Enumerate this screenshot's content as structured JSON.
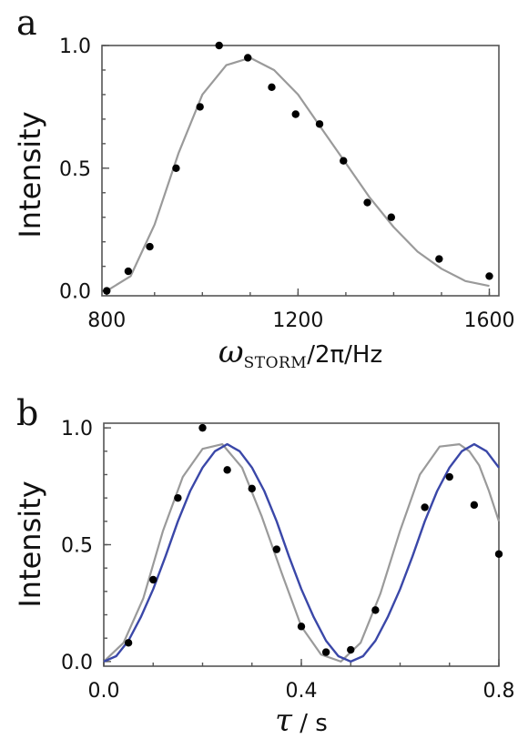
{
  "panels": [
    {
      "letter": "a",
      "ylabel": "Intensity",
      "xlabel": {
        "symbol": "ω",
        "subscript": "STORM",
        "tail": "/2π/Hz"
      },
      "xticks": [
        800,
        1200,
        1600
      ],
      "xtick_labels": [
        "800",
        "1200",
        "1600"
      ],
      "yticks": [
        0.0,
        0.5,
        1.0
      ],
      "ytick_labels": [
        "0.0",
        "0.5",
        "1.0"
      ],
      "xlim": [
        790,
        1620
      ],
      "ylim": [
        -0.02,
        1.0
      ],
      "minor_x_step": 100,
      "minor_y_step": 0.1
    },
    {
      "letter": "b",
      "ylabel": "Intensity",
      "xlabel": {
        "symbol": "τ",
        "subscript": "",
        "tail": " / s"
      },
      "xticks": [
        0.0,
        0.4,
        0.8
      ],
      "xtick_labels": [
        "0.0",
        "0.4",
        "0.8"
      ],
      "yticks": [
        0.0,
        0.5,
        1.0
      ],
      "ytick_labels": [
        "0.0",
        "0.5",
        "1.0"
      ],
      "xlim": [
        0.0,
        0.8
      ],
      "ylim": [
        -0.02,
        1.02
      ],
      "minor_x_step": 0.1,
      "minor_y_step": 0.1
    }
  ],
  "colors": {
    "points": "#000000",
    "gray_curve": "#9a9a9a",
    "blue_curve": "#3a47a8"
  },
  "chart_data": [
    {
      "type": "scatter",
      "title": "",
      "xlabel": "ωSTORM/2π/Hz",
      "ylabel": "Intensity",
      "xlim": [
        790,
        1620
      ],
      "ylim": [
        -0.02,
        1.0
      ],
      "grid": false,
      "series": [
        {
          "kind": "points",
          "x": [
            800,
            845,
            890,
            945,
            995,
            1035,
            1095,
            1145,
            1195,
            1245,
            1295,
            1345,
            1395,
            1495,
            1600
          ],
          "y": [
            0.0,
            0.08,
            0.18,
            0.5,
            0.75,
            1.0,
            0.95,
            0.83,
            0.72,
            0.68,
            0.53,
            0.36,
            0.3,
            0.13,
            0.06
          ]
        },
        {
          "kind": "gray-curve",
          "x": [
            800,
            850,
            900,
            950,
            1000,
            1050,
            1100,
            1150,
            1200,
            1250,
            1300,
            1350,
            1400,
            1450,
            1500,
            1550,
            1600
          ],
          "y": [
            0.0,
            0.06,
            0.27,
            0.56,
            0.8,
            0.92,
            0.95,
            0.9,
            0.8,
            0.66,
            0.52,
            0.38,
            0.26,
            0.16,
            0.09,
            0.04,
            0.02
          ]
        }
      ]
    },
    {
      "type": "scatter",
      "title": "",
      "xlabel": "τ / s",
      "ylabel": "Intensity",
      "xlim": [
        0.0,
        0.8
      ],
      "ylim": [
        -0.02,
        1.02
      ],
      "grid": false,
      "series": [
        {
          "kind": "points",
          "x": [
            0.05,
            0.1,
            0.15,
            0.2,
            0.25,
            0.3,
            0.35,
            0.4,
            0.45,
            0.5,
            0.55,
            0.65,
            0.7,
            0.75,
            0.8
          ],
          "y": [
            0.08,
            0.35,
            0.7,
            1.0,
            0.82,
            0.74,
            0.48,
            0.15,
            0.04,
            0.05,
            0.22,
            0.66,
            0.79,
            0.67,
            0.46
          ]
        },
        {
          "kind": "gray-curve",
          "x": [
            0.0,
            0.04,
            0.08,
            0.12,
            0.16,
            0.2,
            0.24,
            0.28,
            0.32,
            0.36,
            0.4,
            0.44,
            0.48,
            0.52,
            0.56,
            0.6,
            0.64,
            0.68,
            0.72,
            0.74,
            0.76,
            0.78,
            0.8
          ],
          "y": [
            0.0,
            0.08,
            0.27,
            0.56,
            0.79,
            0.91,
            0.93,
            0.83,
            0.62,
            0.38,
            0.15,
            0.03,
            0.0,
            0.08,
            0.29,
            0.56,
            0.8,
            0.92,
            0.93,
            0.9,
            0.84,
            0.73,
            0.6
          ]
        },
        {
          "kind": "blue-curve",
          "x": [
            0.0,
            0.025,
            0.05,
            0.075,
            0.1,
            0.125,
            0.15,
            0.175,
            0.2,
            0.225,
            0.25,
            0.275,
            0.3,
            0.325,
            0.35,
            0.375,
            0.4,
            0.425,
            0.45,
            0.475,
            0.5,
            0.525,
            0.55,
            0.575,
            0.6,
            0.625,
            0.65,
            0.675,
            0.7,
            0.725,
            0.75,
            0.775,
            0.8
          ],
          "y": [
            0.0,
            0.023,
            0.089,
            0.19,
            0.31,
            0.45,
            0.6,
            0.73,
            0.83,
            0.9,
            0.93,
            0.9,
            0.83,
            0.73,
            0.6,
            0.45,
            0.31,
            0.19,
            0.089,
            0.023,
            0.0,
            0.023,
            0.089,
            0.19,
            0.31,
            0.45,
            0.6,
            0.73,
            0.83,
            0.9,
            0.93,
            0.9,
            0.83
          ]
        }
      ]
    }
  ]
}
